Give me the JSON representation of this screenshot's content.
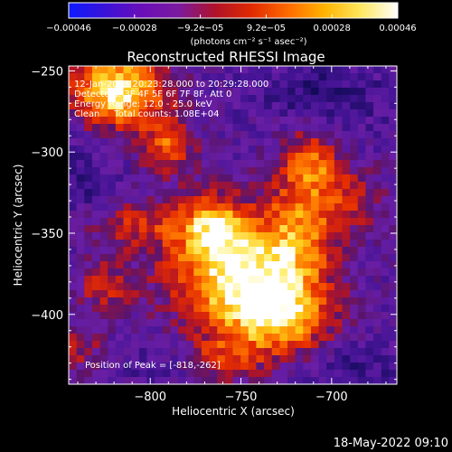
{
  "chart_data": {
    "type": "heatmap",
    "title": "Reconstructed RHESSI Image",
    "xlabel": "Heliocentric X (arcsec)",
    "ylabel": "Heliocentric Y (arcsec)",
    "xlim": [
      -845,
      -664
    ],
    "ylim": [
      -443,
      -247
    ],
    "x_ticks": [
      {
        "value": -800,
        "label": "−800"
      },
      {
        "value": -750,
        "label": "−750"
      },
      {
        "value": -700,
        "label": "−700"
      }
    ],
    "y_ticks": [
      {
        "value": -250,
        "label": "−250"
      },
      {
        "value": -300,
        "label": "−300"
      },
      {
        "value": -350,
        "label": "−350"
      },
      {
        "value": -400,
        "label": "−400"
      }
    ],
    "colorbar": {
      "min": -0.00046,
      "max": 0.00046,
      "tick_labels": [
        "−0.00046",
        "−0.00028",
        "−9.2e−05",
        "9.2e−05",
        "0.00028",
        "0.00046"
      ],
      "unit_label": "(photons cm⁻² s⁻¹ asec⁻²)",
      "colors": [
        "#0d1aff",
        "#3a12d8",
        "#6a0fb8",
        "#7b1aa0",
        "#b0122a",
        "#e02a00",
        "#ff6a00",
        "#ffb400",
        "#ffe860",
        "#ffffff"
      ]
    },
    "annotations": [
      "12-Jan-2013 20:23:28.000 to 20:29:28.000",
      "Detectors: 3F 4F 5F 6F 7F 8F, Att 0",
      "Energy Range: 12.0 - 25.0 keV",
      "Clean     Total counts: 1.08E+04"
    ],
    "peak_label": "Position of Peak = [-818,-262]",
    "peak": [
      -818,
      -262
    ],
    "source_blobs": [
      {
        "x": -818,
        "y": -262,
        "amp": 1.0,
        "sx": 18,
        "sy": 16
      },
      {
        "x": -790,
        "y": -296,
        "amp": 0.55,
        "sx": 10,
        "sy": 12
      },
      {
        "x": -752,
        "y": -375,
        "amp": 0.95,
        "sx": 26,
        "sy": 22
      },
      {
        "x": -766,
        "y": -345,
        "amp": 0.65,
        "sx": 14,
        "sy": 14
      },
      {
        "x": -730,
        "y": -403,
        "amp": 0.75,
        "sx": 20,
        "sy": 16
      },
      {
        "x": -718,
        "y": -345,
        "amp": 0.55,
        "sx": 14,
        "sy": 30
      },
      {
        "x": -710,
        "y": -305,
        "amp": 0.45,
        "sx": 10,
        "sy": 14
      },
      {
        "x": -690,
        "y": -330,
        "amp": 0.35,
        "sx": 14,
        "sy": 14
      },
      {
        "x": -810,
        "y": -345,
        "amp": 0.4,
        "sx": 18,
        "sy": 10
      },
      {
        "x": -825,
        "y": -382,
        "amp": 0.35,
        "sx": 12,
        "sy": 12
      },
      {
        "x": -840,
        "y": -420,
        "amp": 0.3,
        "sx": 10,
        "sy": 12
      },
      {
        "x": -760,
        "y": -428,
        "amp": 0.4,
        "sx": 14,
        "sy": 10
      }
    ],
    "negative_blobs": [
      {
        "x": -705,
        "y": -265,
        "amp": 0.6,
        "sx": 26,
        "sy": 16
      },
      {
        "x": -690,
        "y": -435,
        "amp": 0.5,
        "sx": 20,
        "sy": 14
      },
      {
        "x": -835,
        "y": -315,
        "amp": 0.45,
        "sx": 12,
        "sy": 22
      },
      {
        "x": -800,
        "y": -430,
        "amp": 0.35,
        "sx": 14,
        "sy": 10
      }
    ]
  },
  "footer": {
    "date_label": "18-May-2022 09:10"
  }
}
